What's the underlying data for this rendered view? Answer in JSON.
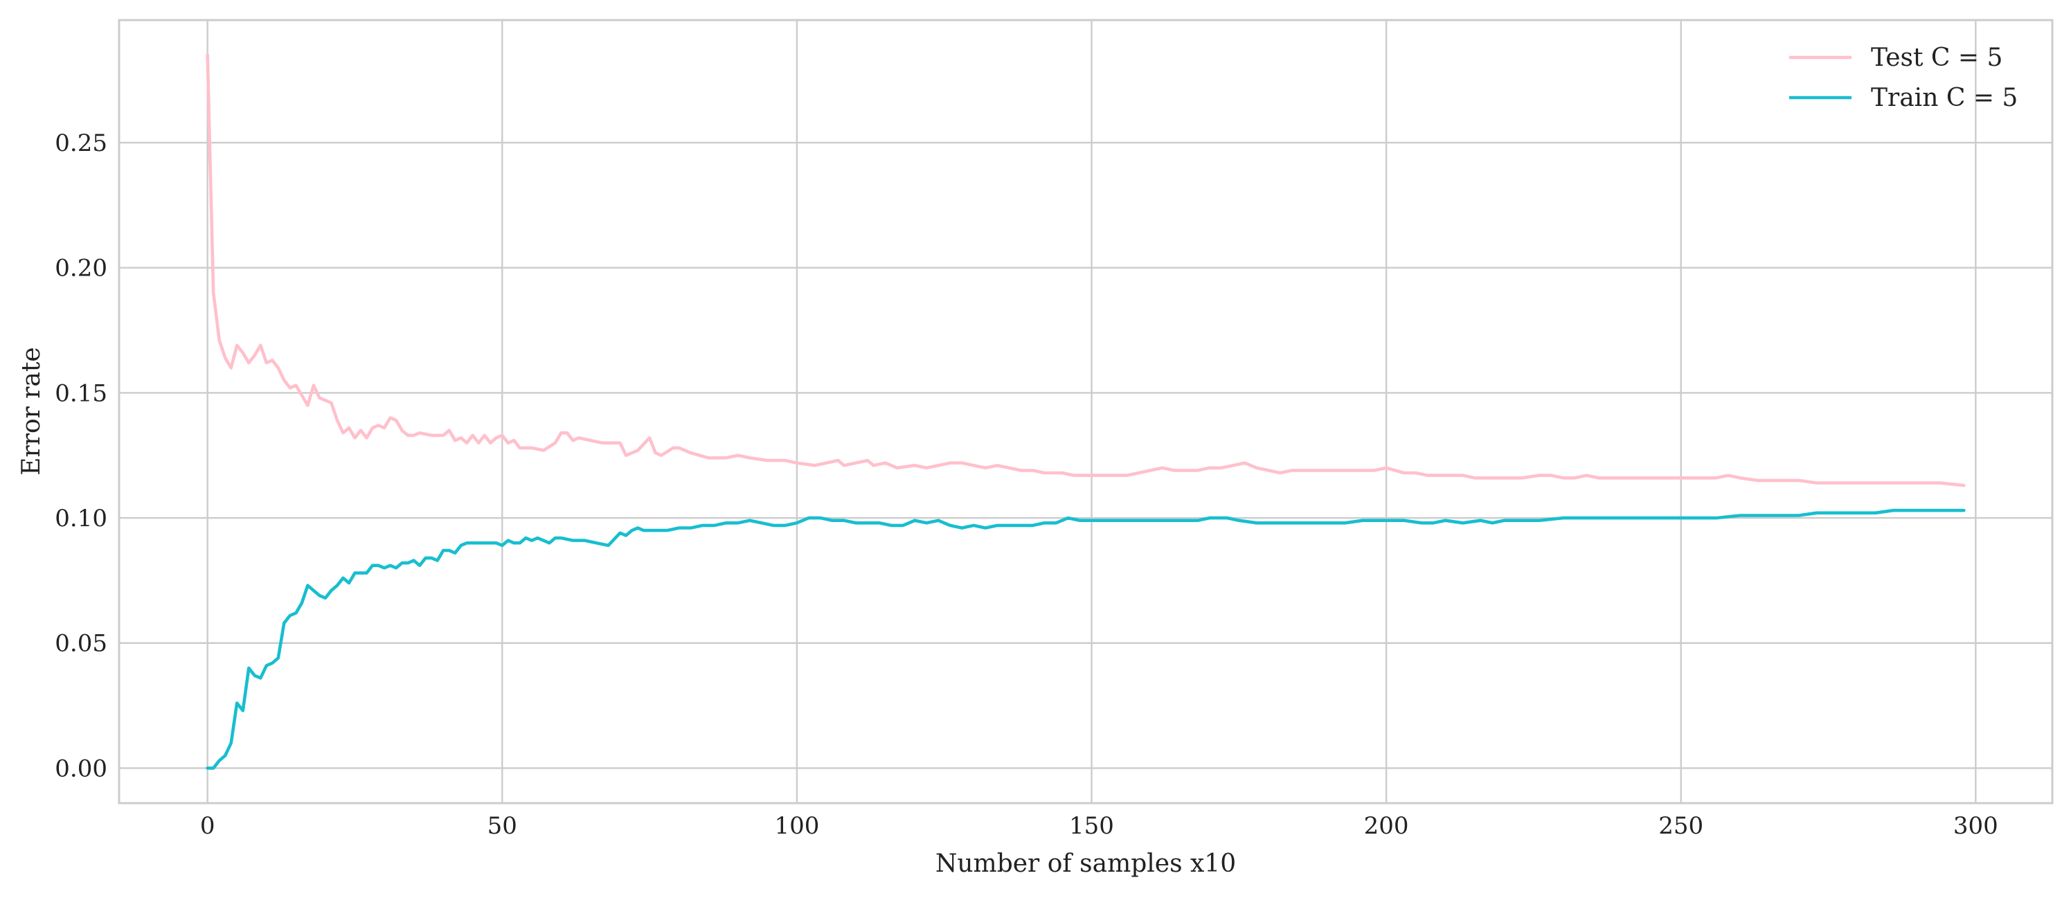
{
  "chart_data": {
    "type": "line",
    "title": "",
    "xlabel": "Number of samples x10",
    "ylabel": "Error rate",
    "xlim": [
      -15,
      313
    ],
    "ylim": [
      -0.014,
      0.299
    ],
    "x_ticks": [
      0,
      50,
      100,
      150,
      200,
      250,
      300
    ],
    "y_ticks": [
      0.0,
      0.05,
      0.1,
      0.15,
      0.2,
      0.25
    ],
    "x_tick_labels": [
      "0",
      "50",
      "100",
      "150",
      "200",
      "250",
      "300"
    ],
    "y_tick_labels": [
      "0.00",
      "0.05",
      "0.10",
      "0.15",
      "0.20",
      "0.25"
    ],
    "grid": true,
    "legend_position": "top-right",
    "series": [
      {
        "name": "Test C = 5",
        "color": "#ffc0cb",
        "points": [
          [
            0,
            0.285
          ],
          [
            1,
            0.19
          ],
          [
            2,
            0.171
          ],
          [
            3,
            0.164
          ],
          [
            4,
            0.16
          ],
          [
            5,
            0.169
          ],
          [
            6,
            0.166
          ],
          [
            7,
            0.162
          ],
          [
            8,
            0.165
          ],
          [
            9,
            0.169
          ],
          [
            10,
            0.162
          ],
          [
            11,
            0.163
          ],
          [
            12,
            0.16
          ],
          [
            13,
            0.155
          ],
          [
            14,
            0.152
          ],
          [
            15,
            0.153
          ],
          [
            16,
            0.149
          ],
          [
            17,
            0.145
          ],
          [
            18,
            0.153
          ],
          [
            19,
            0.148
          ],
          [
            20,
            0.147
          ],
          [
            21,
            0.146
          ],
          [
            22,
            0.139
          ],
          [
            23,
            0.134
          ],
          [
            24,
            0.136
          ],
          [
            25,
            0.132
          ],
          [
            26,
            0.135
          ],
          [
            27,
            0.132
          ],
          [
            28,
            0.136
          ],
          [
            29,
            0.137
          ],
          [
            30,
            0.136
          ],
          [
            31,
            0.14
          ],
          [
            32,
            0.139
          ],
          [
            33,
            0.135
          ],
          [
            34,
            0.133
          ],
          [
            35,
            0.133
          ],
          [
            36,
            0.134
          ],
          [
            38,
            0.133
          ],
          [
            40,
            0.133
          ],
          [
            41,
            0.135
          ],
          [
            42,
            0.131
          ],
          [
            43,
            0.132
          ],
          [
            44,
            0.13
          ],
          [
            45,
            0.133
          ],
          [
            46,
            0.13
          ],
          [
            47,
            0.133
          ],
          [
            48,
            0.13
          ],
          [
            49,
            0.132
          ],
          [
            50,
            0.133
          ],
          [
            51,
            0.13
          ],
          [
            52,
            0.131
          ],
          [
            53,
            0.128
          ],
          [
            55,
            0.128
          ],
          [
            57,
            0.127
          ],
          [
            59,
            0.13
          ],
          [
            60,
            0.134
          ],
          [
            61,
            0.134
          ],
          [
            62,
            0.131
          ],
          [
            63,
            0.132
          ],
          [
            65,
            0.131
          ],
          [
            67,
            0.13
          ],
          [
            70,
            0.13
          ],
          [
            71,
            0.125
          ],
          [
            73,
            0.127
          ],
          [
            75,
            0.132
          ],
          [
            76,
            0.126
          ],
          [
            77,
            0.125
          ],
          [
            79,
            0.128
          ],
          [
            80,
            0.128
          ],
          [
            82,
            0.126
          ],
          [
            85,
            0.124
          ],
          [
            88,
            0.124
          ],
          [
            90,
            0.125
          ],
          [
            92,
            0.124
          ],
          [
            95,
            0.123
          ],
          [
            98,
            0.123
          ],
          [
            100,
            0.122
          ],
          [
            103,
            0.121
          ],
          [
            105,
            0.122
          ],
          [
            107,
            0.123
          ],
          [
            108,
            0.121
          ],
          [
            110,
            0.122
          ],
          [
            112,
            0.123
          ],
          [
            113,
            0.121
          ],
          [
            115,
            0.122
          ],
          [
            117,
            0.12
          ],
          [
            120,
            0.121
          ],
          [
            122,
            0.12
          ],
          [
            124,
            0.121
          ],
          [
            126,
            0.122
          ],
          [
            128,
            0.122
          ],
          [
            130,
            0.121
          ],
          [
            132,
            0.12
          ],
          [
            134,
            0.121
          ],
          [
            136,
            0.12
          ],
          [
            138,
            0.119
          ],
          [
            140,
            0.119
          ],
          [
            142,
            0.118
          ],
          [
            145,
            0.118
          ],
          [
            147,
            0.117
          ],
          [
            150,
            0.117
          ],
          [
            153,
            0.117
          ],
          [
            156,
            0.117
          ],
          [
            158,
            0.118
          ],
          [
            160,
            0.119
          ],
          [
            162,
            0.12
          ],
          [
            164,
            0.119
          ],
          [
            166,
            0.119
          ],
          [
            168,
            0.119
          ],
          [
            170,
            0.12
          ],
          [
            172,
            0.12
          ],
          [
            174,
            0.121
          ],
          [
            176,
            0.122
          ],
          [
            178,
            0.12
          ],
          [
            180,
            0.119
          ],
          [
            182,
            0.118
          ],
          [
            184,
            0.119
          ],
          [
            186,
            0.119
          ],
          [
            188,
            0.119
          ],
          [
            190,
            0.119
          ],
          [
            192,
            0.119
          ],
          [
            195,
            0.119
          ],
          [
            198,
            0.119
          ],
          [
            200,
            0.12
          ],
          [
            203,
            0.118
          ],
          [
            205,
            0.118
          ],
          [
            207,
            0.117
          ],
          [
            210,
            0.117
          ],
          [
            213,
            0.117
          ],
          [
            215,
            0.116
          ],
          [
            218,
            0.116
          ],
          [
            220,
            0.116
          ],
          [
            223,
            0.116
          ],
          [
            226,
            0.117
          ],
          [
            228,
            0.117
          ],
          [
            230,
            0.116
          ],
          [
            232,
            0.116
          ],
          [
            234,
            0.117
          ],
          [
            236,
            0.116
          ],
          [
            240,
            0.116
          ],
          [
            243,
            0.116
          ],
          [
            246,
            0.116
          ],
          [
            250,
            0.116
          ],
          [
            253,
            0.116
          ],
          [
            256,
            0.116
          ],
          [
            258,
            0.117
          ],
          [
            260,
            0.116
          ],
          [
            263,
            0.115
          ],
          [
            266,
            0.115
          ],
          [
            270,
            0.115
          ],
          [
            273,
            0.114
          ],
          [
            276,
            0.114
          ],
          [
            280,
            0.114
          ],
          [
            283,
            0.114
          ],
          [
            286,
            0.114
          ],
          [
            290,
            0.114
          ],
          [
            294,
            0.114
          ],
          [
            298,
            0.113
          ]
        ]
      },
      {
        "name": "Train C = 5",
        "color": "#17becf",
        "points": [
          [
            0,
            0.0
          ],
          [
            1,
            0.0
          ],
          [
            2,
            0.003
          ],
          [
            3,
            0.005
          ],
          [
            4,
            0.01
          ],
          [
            5,
            0.026
          ],
          [
            6,
            0.023
          ],
          [
            7,
            0.04
          ],
          [
            8,
            0.037
          ],
          [
            9,
            0.036
          ],
          [
            10,
            0.041
          ],
          [
            11,
            0.042
          ],
          [
            12,
            0.044
          ],
          [
            13,
            0.058
          ],
          [
            14,
            0.061
          ],
          [
            15,
            0.062
          ],
          [
            16,
            0.066
          ],
          [
            17,
            0.073
          ],
          [
            18,
            0.071
          ],
          [
            19,
            0.069
          ],
          [
            20,
            0.068
          ],
          [
            21,
            0.071
          ],
          [
            22,
            0.073
          ],
          [
            23,
            0.076
          ],
          [
            24,
            0.074
          ],
          [
            25,
            0.078
          ],
          [
            26,
            0.078
          ],
          [
            27,
            0.078
          ],
          [
            28,
            0.081
          ],
          [
            29,
            0.081
          ],
          [
            30,
            0.08
          ],
          [
            31,
            0.081
          ],
          [
            32,
            0.08
          ],
          [
            33,
            0.082
          ],
          [
            34,
            0.082
          ],
          [
            35,
            0.083
          ],
          [
            36,
            0.081
          ],
          [
            37,
            0.084
          ],
          [
            38,
            0.084
          ],
          [
            39,
            0.083
          ],
          [
            40,
            0.087
          ],
          [
            41,
            0.087
          ],
          [
            42,
            0.086
          ],
          [
            43,
            0.089
          ],
          [
            44,
            0.09
          ],
          [
            45,
            0.09
          ],
          [
            46,
            0.09
          ],
          [
            47,
            0.09
          ],
          [
            48,
            0.09
          ],
          [
            49,
            0.09
          ],
          [
            50,
            0.089
          ],
          [
            51,
            0.091
          ],
          [
            52,
            0.09
          ],
          [
            53,
            0.09
          ],
          [
            54,
            0.092
          ],
          [
            55,
            0.091
          ],
          [
            56,
            0.092
          ],
          [
            57,
            0.091
          ],
          [
            58,
            0.09
          ],
          [
            59,
            0.092
          ],
          [
            60,
            0.092
          ],
          [
            62,
            0.091
          ],
          [
            64,
            0.091
          ],
          [
            66,
            0.09
          ],
          [
            68,
            0.089
          ],
          [
            70,
            0.094
          ],
          [
            71,
            0.093
          ],
          [
            72,
            0.095
          ],
          [
            73,
            0.096
          ],
          [
            74,
            0.095
          ],
          [
            76,
            0.095
          ],
          [
            78,
            0.095
          ],
          [
            80,
            0.096
          ],
          [
            82,
            0.096
          ],
          [
            84,
            0.097
          ],
          [
            86,
            0.097
          ],
          [
            88,
            0.098
          ],
          [
            90,
            0.098
          ],
          [
            92,
            0.099
          ],
          [
            94,
            0.098
          ],
          [
            96,
            0.097
          ],
          [
            98,
            0.097
          ],
          [
            100,
            0.098
          ],
          [
            102,
            0.1
          ],
          [
            104,
            0.1
          ],
          [
            106,
            0.099
          ],
          [
            108,
            0.099
          ],
          [
            110,
            0.098
          ],
          [
            112,
            0.098
          ],
          [
            114,
            0.098
          ],
          [
            116,
            0.097
          ],
          [
            118,
            0.097
          ],
          [
            120,
            0.099
          ],
          [
            122,
            0.098
          ],
          [
            124,
            0.099
          ],
          [
            126,
            0.097
          ],
          [
            128,
            0.096
          ],
          [
            130,
            0.097
          ],
          [
            132,
            0.096
          ],
          [
            134,
            0.097
          ],
          [
            136,
            0.097
          ],
          [
            138,
            0.097
          ],
          [
            140,
            0.097
          ],
          [
            142,
            0.098
          ],
          [
            144,
            0.098
          ],
          [
            146,
            0.1
          ],
          [
            148,
            0.099
          ],
          [
            150,
            0.099
          ],
          [
            152,
            0.099
          ],
          [
            155,
            0.099
          ],
          [
            158,
            0.099
          ],
          [
            160,
            0.099
          ],
          [
            162,
            0.099
          ],
          [
            165,
            0.099
          ],
          [
            168,
            0.099
          ],
          [
            170,
            0.1
          ],
          [
            173,
            0.1
          ],
          [
            175,
            0.099
          ],
          [
            178,
            0.098
          ],
          [
            180,
            0.098
          ],
          [
            183,
            0.098
          ],
          [
            186,
            0.098
          ],
          [
            190,
            0.098
          ],
          [
            193,
            0.098
          ],
          [
            196,
            0.099
          ],
          [
            200,
            0.099
          ],
          [
            203,
            0.099
          ],
          [
            206,
            0.098
          ],
          [
            208,
            0.098
          ],
          [
            210,
            0.099
          ],
          [
            213,
            0.098
          ],
          [
            216,
            0.099
          ],
          [
            218,
            0.098
          ],
          [
            220,
            0.099
          ],
          [
            223,
            0.099
          ],
          [
            226,
            0.099
          ],
          [
            230,
            0.1
          ],
          [
            233,
            0.1
          ],
          [
            236,
            0.1
          ],
          [
            240,
            0.1
          ],
          [
            243,
            0.1
          ],
          [
            246,
            0.1
          ],
          [
            250,
            0.1
          ],
          [
            253,
            0.1
          ],
          [
            256,
            0.1
          ],
          [
            260,
            0.101
          ],
          [
            263,
            0.101
          ],
          [
            266,
            0.101
          ],
          [
            270,
            0.101
          ],
          [
            273,
            0.102
          ],
          [
            276,
            0.102
          ],
          [
            280,
            0.102
          ],
          [
            283,
            0.102
          ],
          [
            286,
            0.103
          ],
          [
            290,
            0.103
          ],
          [
            294,
            0.103
          ],
          [
            298,
            0.103
          ]
        ]
      }
    ]
  }
}
